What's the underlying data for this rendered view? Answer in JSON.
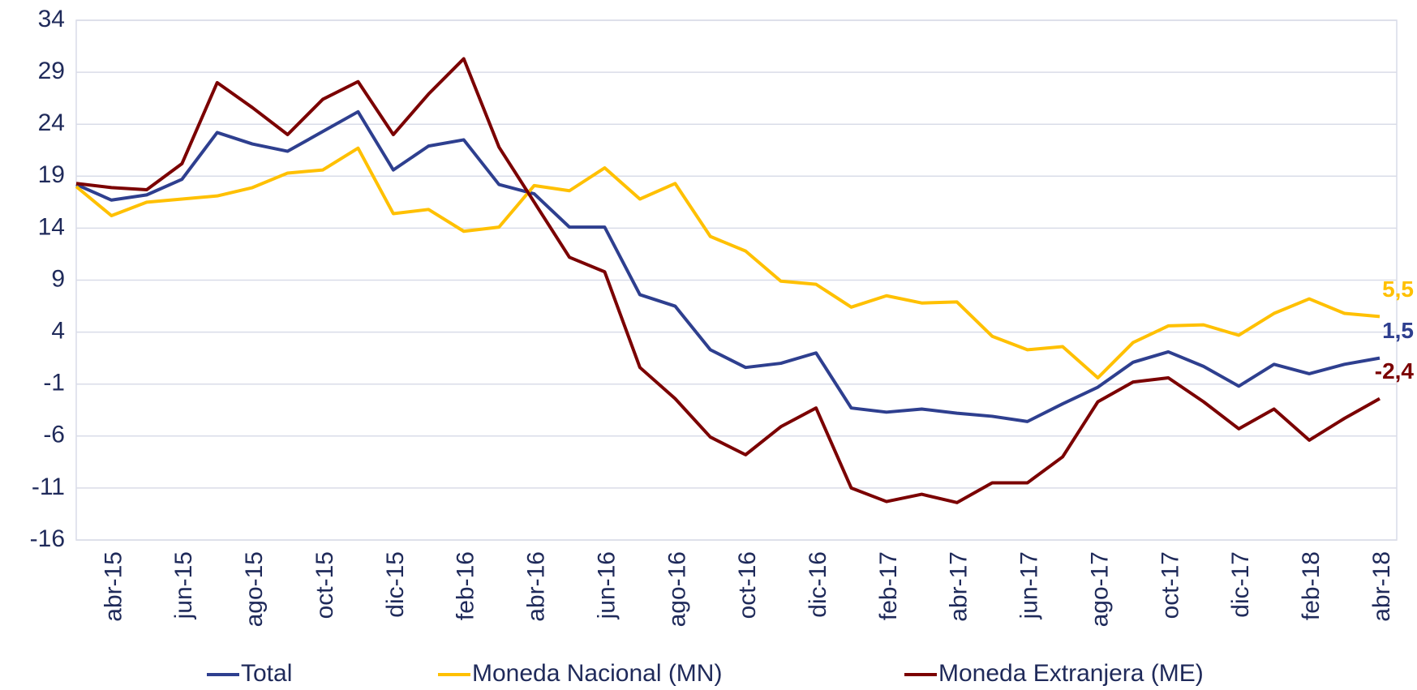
{
  "chart_data": {
    "type": "line",
    "categories": [
      null,
      "abr-15",
      null,
      "jun-15",
      null,
      "ago-15",
      null,
      "oct-15",
      null,
      "dic-15",
      null,
      "feb-16",
      null,
      "abr-16",
      null,
      "jun-16",
      null,
      "ago-16",
      null,
      "oct-16",
      null,
      "dic-16",
      null,
      "feb-17",
      null,
      "abr-17",
      null,
      "jun-17",
      null,
      "ago-17",
      null,
      "oct-17",
      null,
      "dic-17",
      null,
      "feb-18",
      null,
      "abr-18"
    ],
    "series": [
      {
        "name": "Total",
        "color": "#2e3f8f",
        "values": [
          18.2,
          16.7,
          17.2,
          18.7,
          23.2,
          22.1,
          21.4,
          23.3,
          25.2,
          19.6,
          21.9,
          22.5,
          18.2,
          17.3,
          14.1,
          14.1,
          7.6,
          6.5,
          2.3,
          0.6,
          1.0,
          2.0,
          -3.3,
          -3.7,
          -3.4,
          -3.8,
          -4.1,
          -4.6,
          -2.9,
          -1.3,
          1.1,
          2.1,
          0.7,
          -1.2,
          0.9,
          0.0,
          0.9,
          1.5
        ],
        "value_labels": [
          null,
          null,
          null,
          null,
          null,
          null,
          null,
          null,
          null,
          null,
          null,
          null,
          null,
          null,
          null,
          null,
          null,
          null,
          null,
          null,
          null,
          null,
          null,
          null,
          null,
          null,
          null,
          null,
          null,
          null,
          null,
          null,
          null,
          null,
          null,
          null,
          null,
          "1,5"
        ]
      },
      {
        "name": "Moneda Nacional (MN)",
        "color": "#ffc000",
        "values": [
          18.0,
          15.2,
          16.5,
          16.8,
          17.1,
          17.9,
          19.3,
          19.6,
          21.7,
          15.4,
          15.8,
          13.7,
          14.1,
          18.1,
          17.6,
          19.8,
          16.8,
          18.3,
          13.2,
          11.8,
          8.9,
          8.6,
          6.4,
          7.5,
          6.8,
          6.9,
          3.6,
          2.3,
          2.6,
          -0.4,
          3.0,
          4.6,
          4.7,
          3.7,
          5.8,
          7.2,
          5.8,
          5.5
        ],
        "value_labels": [
          null,
          null,
          null,
          null,
          null,
          null,
          null,
          null,
          null,
          null,
          null,
          null,
          null,
          null,
          null,
          null,
          null,
          null,
          null,
          null,
          null,
          null,
          null,
          null,
          null,
          null,
          null,
          null,
          null,
          null,
          null,
          null,
          null,
          null,
          null,
          null,
          null,
          "5,5"
        ]
      },
      {
        "name": "Moneda Extranjera (ME)",
        "color": "#7b0000",
        "values": [
          18.3,
          17.9,
          17.7,
          20.2,
          28.0,
          25.6,
          23.0,
          26.4,
          28.1,
          23.0,
          26.9,
          30.3,
          21.8,
          16.5,
          11.2,
          9.8,
          0.6,
          -2.4,
          -6.1,
          -7.8,
          -5.1,
          -3.3,
          -11.0,
          -12.3,
          -11.6,
          -12.4,
          -10.5,
          -10.5,
          -8.0,
          -2.7,
          -0.8,
          -0.4,
          -2.7,
          -5.3,
          -3.4,
          -6.4,
          -4.3,
          -2.4
        ],
        "value_labels": [
          null,
          null,
          null,
          null,
          null,
          null,
          null,
          null,
          null,
          null,
          null,
          null,
          null,
          null,
          null,
          null,
          null,
          null,
          null,
          null,
          null,
          null,
          null,
          null,
          null,
          null,
          null,
          null,
          null,
          null,
          null,
          null,
          null,
          null,
          null,
          null,
          null,
          "-2,4"
        ]
      }
    ],
    "ylim": [
      -16,
      34
    ],
    "yticks": [
      -16,
      -11,
      -6,
      -1,
      4,
      9,
      14,
      19,
      24,
      29,
      34
    ],
    "grid": true,
    "legend": "bottom"
  }
}
